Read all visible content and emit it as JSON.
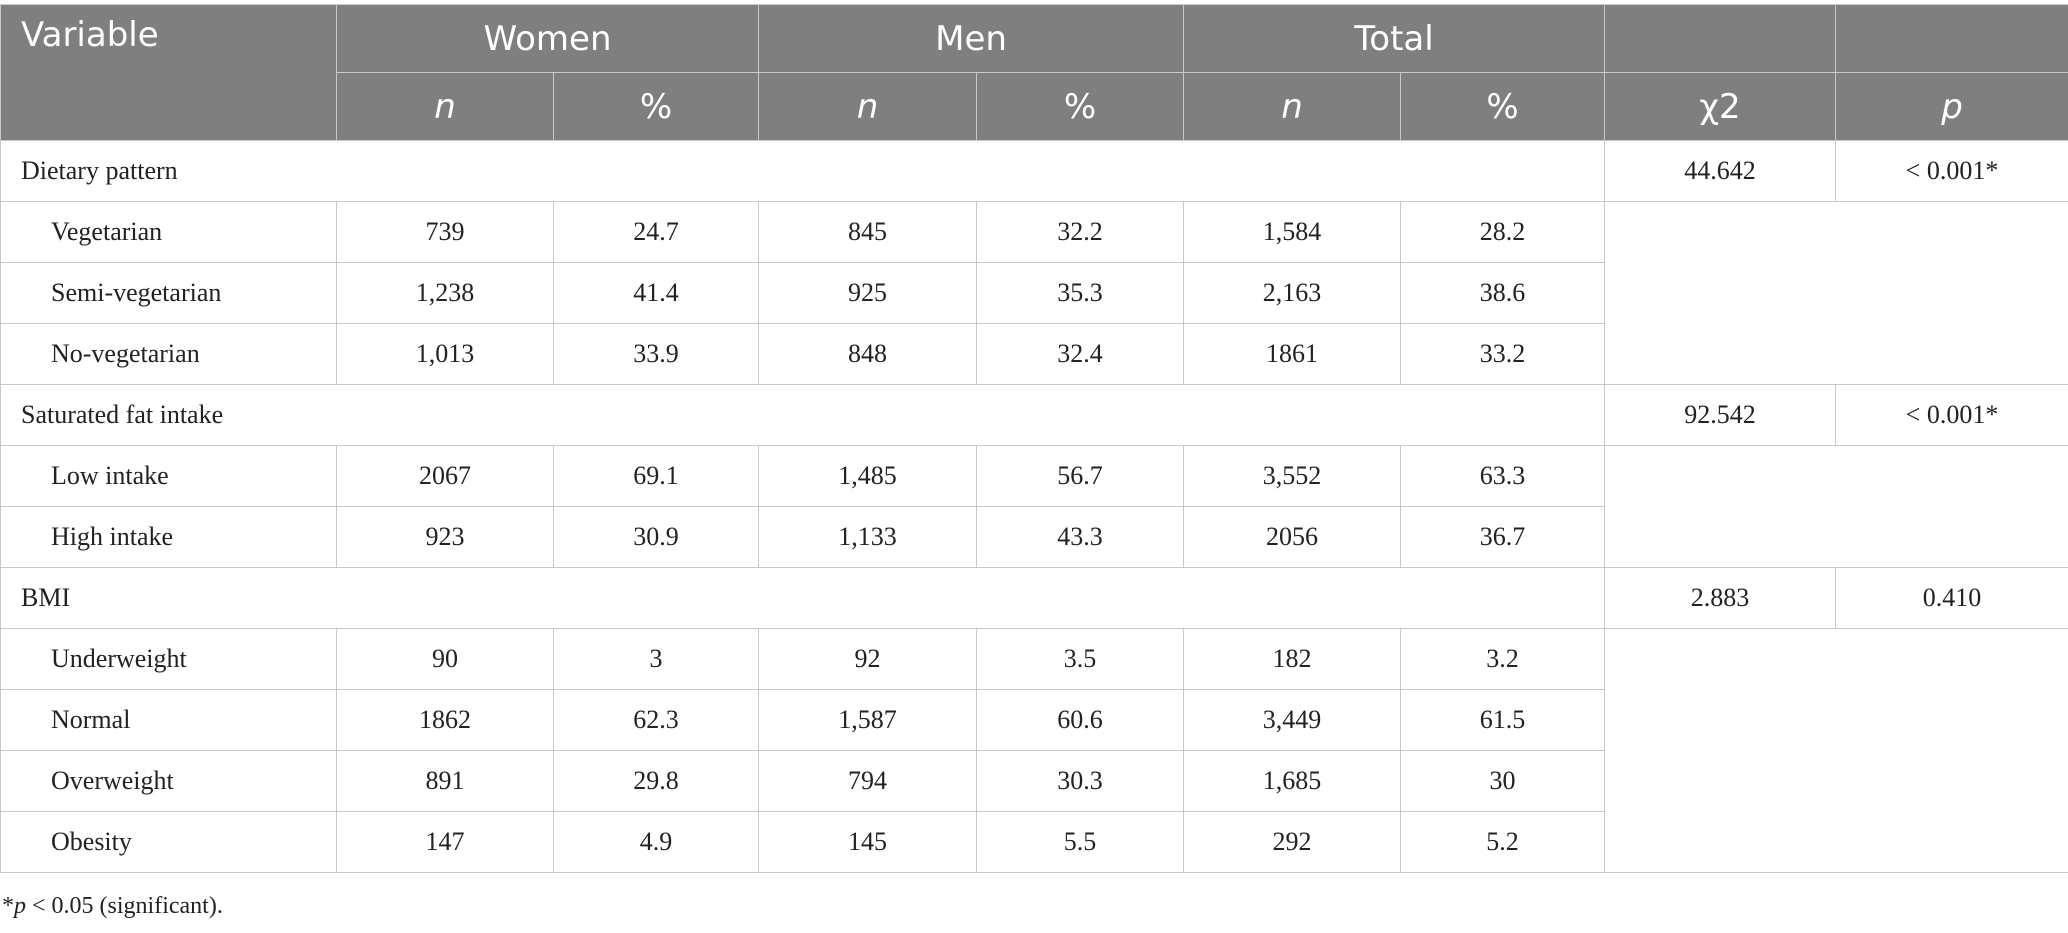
{
  "header": {
    "variable": "Variable",
    "groups": [
      "Women",
      "Men",
      "Total"
    ],
    "sub": [
      "n",
      "%",
      "n",
      "%",
      "n",
      "%"
    ],
    "chi2": "χ2",
    "p": "p"
  },
  "sections": [
    {
      "title": "Dietary pattern",
      "chi2": "44.642",
      "p": "< 0.001*",
      "rows": [
        {
          "label": "Vegetarian",
          "values": [
            "739",
            "24.7",
            "845",
            "32.2",
            "1,584",
            "28.2"
          ]
        },
        {
          "label": "Semi-vegetarian",
          "values": [
            "1,238",
            "41.4",
            "925",
            "35.3",
            "2,163",
            "38.6"
          ]
        },
        {
          "label": "No-vegetarian",
          "values": [
            "1,013",
            "33.9",
            "848",
            "32.4",
            "1861",
            "33.2"
          ]
        }
      ]
    },
    {
      "title": "Saturated fat intake",
      "chi2": "92.542",
      "p": "< 0.001*",
      "rows": [
        {
          "label": "Low intake",
          "values": [
            "2067",
            "69.1",
            "1,485",
            "56.7",
            "3,552",
            "63.3"
          ]
        },
        {
          "label": "High intake",
          "values": [
            "923",
            "30.9",
            "1,133",
            "43.3",
            "2056",
            "36.7"
          ]
        }
      ]
    },
    {
      "title": "BMI",
      "chi2": "2.883",
      "p": "0.410",
      "rows": [
        {
          "label": "Underweight",
          "values": [
            "90",
            "3",
            "92",
            "3.5",
            "182",
            "3.2"
          ]
        },
        {
          "label": "Normal",
          "values": [
            "1862",
            "62.3",
            "1,587",
            "60.6",
            "3,449",
            "61.5"
          ]
        },
        {
          "label": "Overweight",
          "values": [
            "891",
            "29.8",
            "794",
            "30.3",
            "1,685",
            "30"
          ]
        },
        {
          "label": "Obesity",
          "values": [
            "147",
            "4.9",
            "145",
            "5.5",
            "292",
            "5.2"
          ]
        }
      ]
    }
  ],
  "footnote": {
    "marker": "*",
    "symbol": "p",
    "text": " < 0.05 (significant)."
  }
}
